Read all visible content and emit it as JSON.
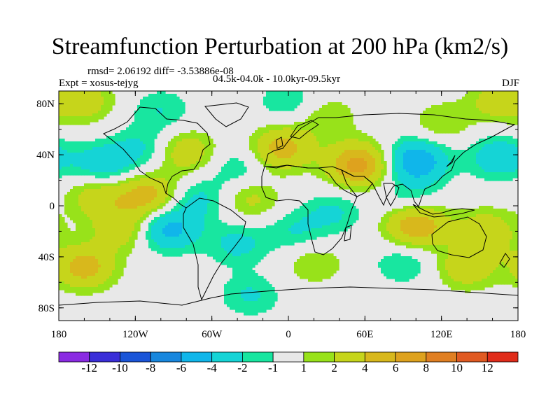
{
  "chart_data": {
    "type": "heatmap",
    "title": "Streamfunction Perturbation at 200 hPa (km2/s)",
    "stats": "rmsd= 2.06192 diff= -3.53886e-08",
    "experiment": "Expt = xosus-tejyg",
    "period": "04.5k-04.0k - 10.0kyr-09.5kyr",
    "season": "DJF",
    "xlim": [
      -180,
      180
    ],
    "ylim": [
      -90,
      90
    ],
    "x_ticks": [
      {
        "value": -180,
        "label": "180"
      },
      {
        "value": -120,
        "label": "120W"
      },
      {
        "value": -60,
        "label": "60W"
      },
      {
        "value": 0,
        "label": "0"
      },
      {
        "value": 60,
        "label": "60E"
      },
      {
        "value": 120,
        "label": "120E"
      },
      {
        "value": 180,
        "label": "180"
      }
    ],
    "y_ticks": [
      {
        "value": 80,
        "label": "80N"
      },
      {
        "value": 40,
        "label": "40N"
      },
      {
        "value": 0,
        "label": "0"
      },
      {
        "value": -40,
        "label": "40S"
      },
      {
        "value": -80,
        "label": "80S"
      }
    ],
    "colorbar": {
      "colors": [
        "#8a2be2",
        "#3a2ed8",
        "#1a55d8",
        "#1887de",
        "#10b6ea",
        "#15d4d6",
        "#18e6a0",
        "#e8e8e8",
        "#98e21a",
        "#c6d51b",
        "#d8b81c",
        "#dea21e",
        "#e07f22",
        "#e05a22",
        "#e02c1a"
      ],
      "labels": [
        "-12",
        "-10",
        "-8",
        "-6",
        "-4",
        "-2",
        "-1",
        "1",
        "2",
        "4",
        "6",
        "8",
        "10",
        "12"
      ]
    },
    "anomaly_centers": [
      {
        "lon": -145,
        "lat": 32,
        "value": -3.5
      },
      {
        "lon": -115,
        "lat": 45,
        "value": -2.2
      },
      {
        "lon": -150,
        "lat": 8,
        "value": 3.2
      },
      {
        "lon": -110,
        "lat": 8,
        "value": 5
      },
      {
        "lon": -130,
        "lat": -18,
        "value": 3.5
      },
      {
        "lon": -95,
        "lat": -18,
        "value": -5
      },
      {
        "lon": -80,
        "lat": 42,
        "value": 3.5
      },
      {
        "lon": -70,
        "lat": 5,
        "value": -2.5
      },
      {
        "lon": -30,
        "lat": 5,
        "value": 2.5
      },
      {
        "lon": -40,
        "lat": 30,
        "value": -2
      },
      {
        "lon": -40,
        "lat": -30,
        "value": -2.5
      },
      {
        "lon": -160,
        "lat": -48,
        "value": 5
      },
      {
        "lon": -30,
        "lat": -70,
        "value": -2.2
      },
      {
        "lon": -5,
        "lat": 45,
        "value": 5
      },
      {
        "lon": 55,
        "lat": 32,
        "value": 7
      },
      {
        "lon": 35,
        "lat": -5,
        "value": -2.2
      },
      {
        "lon": 5,
        "lat": -20,
        "value": -2
      },
      {
        "lon": 100,
        "lat": 35,
        "value": -6
      },
      {
        "lon": 165,
        "lat": 38,
        "value": -3.5
      },
      {
        "lon": 100,
        "lat": -15,
        "value": 6
      },
      {
        "lon": 155,
        "lat": -20,
        "value": 3.5
      },
      {
        "lon": 140,
        "lat": -48,
        "value": 3.5
      },
      {
        "lon": 165,
        "lat": 82,
        "value": 3
      },
      {
        "lon": -160,
        "lat": 82,
        "value": 3
      },
      {
        "lon": 0,
        "lat": 82,
        "value": -2
      },
      {
        "lon": 30,
        "lat": 70,
        "value": 2
      },
      {
        "lon": 90,
        "lat": -45,
        "value": -2
      },
      {
        "lon": 20,
        "lat": -45,
        "value": 2
      },
      {
        "lon": -100,
        "lat": 75,
        "value": -2
      },
      {
        "lon": 120,
        "lat": 65,
        "value": 2
      },
      {
        "lon": 95,
        "lat": 5,
        "value": -1.8
      }
    ]
  }
}
